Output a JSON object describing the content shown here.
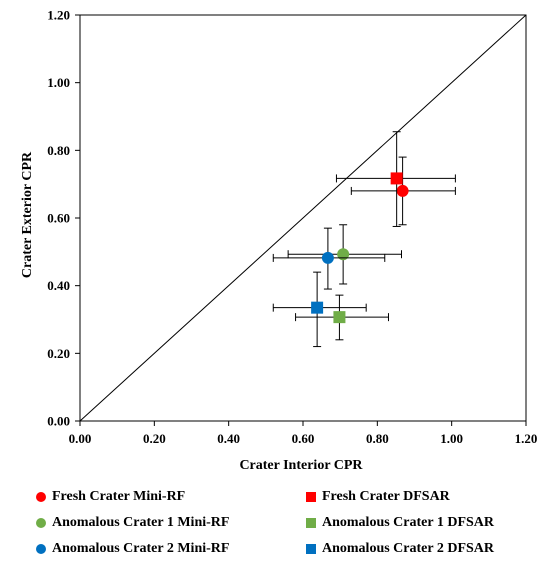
{
  "chart_data": {
    "type": "scatter",
    "xlabel": "Crater Interior CPR",
    "ylabel": "Crater Exterior CPR",
    "xlim": [
      0,
      1.2
    ],
    "ylim": [
      0,
      1.2
    ],
    "x_ticks": [
      "0.00",
      "0.20",
      "0.40",
      "0.60",
      "0.80",
      "1.00",
      "1.20"
    ],
    "y_ticks": [
      "0.00",
      "0.20",
      "0.40",
      "0.60",
      "0.80",
      "1.00",
      "1.20"
    ],
    "grid": false,
    "reference_line": "y = x",
    "legend_position": "bottom",
    "series": [
      {
        "name": "Fresh Crater Mini-RF",
        "marker": "circle",
        "color": "#ff0000",
        "x": 0.868,
        "y": 0.68,
        "x_err": [
          0.73,
          1.01
        ],
        "y_err": [
          0.58,
          0.78
        ]
      },
      {
        "name": "Fresh Crater DFSAR",
        "marker": "square",
        "color": "#ff0000",
        "x": 0.852,
        "y": 0.717,
        "x_err": [
          0.69,
          1.01
        ],
        "y_err": [
          0.575,
          0.855
        ]
      },
      {
        "name": "Anomalous Crater 1 Mini-RF",
        "marker": "circle",
        "color": "#70ad47",
        "x": 0.708,
        "y": 0.493,
        "x_err": [
          0.56,
          0.865
        ],
        "y_err": [
          0.405,
          0.58
        ]
      },
      {
        "name": "Anomalous Crater 1 DFSAR",
        "marker": "square",
        "color": "#70ad47",
        "x": 0.698,
        "y": 0.307,
        "x_err": [
          0.58,
          0.83
        ],
        "y_err": [
          0.24,
          0.372
        ]
      },
      {
        "name": "Anomalous Crater 2 Mini-RF",
        "marker": "circle",
        "color": "#0070c0",
        "x": 0.667,
        "y": 0.482,
        "x_err": [
          0.52,
          0.82
        ],
        "y_err": [
          0.39,
          0.57
        ]
      },
      {
        "name": "Anomalous Crater 2 DFSAR",
        "marker": "square",
        "color": "#0070c0",
        "x": 0.638,
        "y": 0.335,
        "x_err": [
          0.52,
          0.77
        ],
        "y_err": [
          0.22,
          0.44
        ]
      }
    ]
  }
}
